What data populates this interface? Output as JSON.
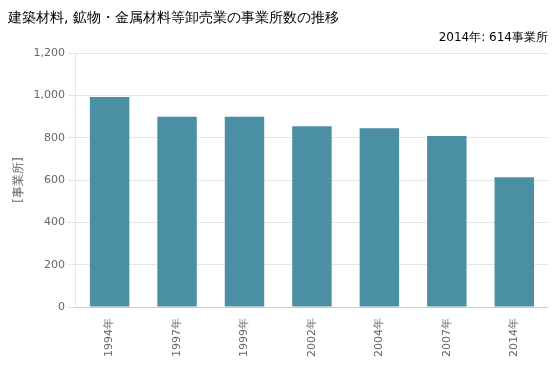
{
  "chart_data": {
    "type": "bar",
    "title": "建築材料, 鉱物・金属材料等卸売業の事業所数の推移",
    "ylabel": "[事業所]",
    "annotation": "2014年: 614事業所",
    "categories": [
      "1994年",
      "1997年",
      "1999年",
      "2002年",
      "2004年",
      "2007年",
      "2014年"
    ],
    "values": [
      993,
      899,
      899,
      855,
      845,
      808,
      614
    ],
    "color": "#4a8fa3",
    "ylim": [
      0,
      1200
    ],
    "yticks": [
      0,
      200,
      400,
      600,
      800,
      {
        "value": 1000,
        "label": "1,000"
      },
      {
        "value": 1200,
        "label": "1,200"
      }
    ],
    "grid": true
  }
}
